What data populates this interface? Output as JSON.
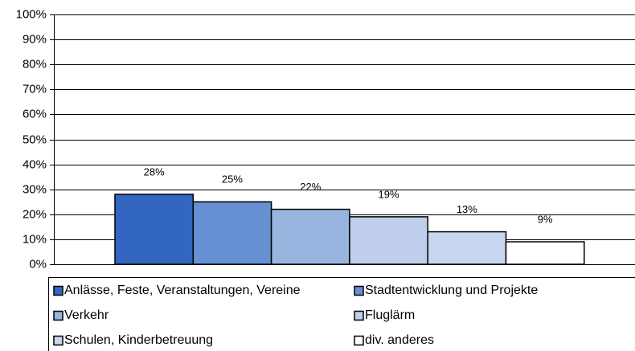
{
  "chart_data": {
    "type": "bar",
    "series": [
      {
        "name": "Anlässe, Feste, Veranstaltungen, Vereine",
        "color": "#3366c0",
        "values": [
          28
        ],
        "value_labels": [
          "28%"
        ]
      },
      {
        "name": "Stadtentwicklung und Projekte",
        "color": "#6690d2",
        "values": [
          25
        ],
        "value_labels": [
          "25%"
        ]
      },
      {
        "name": "Verkehr",
        "color": "#99b4de",
        "values": [
          22
        ],
        "value_labels": [
          "22%"
        ]
      },
      {
        "name": "Fluglärm",
        "color": "#bfcfeb",
        "values": [
          19
        ],
        "value_labels": [
          "19%"
        ]
      },
      {
        "name": "Schulen, Kinderbetreuung",
        "color": "#c9d6ef",
        "values": [
          13
        ],
        "value_labels": [
          "13%"
        ]
      },
      {
        "name": "div. anderes",
        "color": "#ffffff",
        "values": [
          9
        ],
        "value_labels": [
          "9%"
        ]
      }
    ],
    "ylim": [
      0,
      100
    ],
    "yticks": [
      {
        "value": 0,
        "label": "0%"
      },
      {
        "value": 10,
        "label": "10%"
      },
      {
        "value": 20,
        "label": "20%"
      },
      {
        "value": 30,
        "label": "30%"
      },
      {
        "value": 40,
        "label": "40%"
      },
      {
        "value": 50,
        "label": "50%"
      },
      {
        "value": 60,
        "label": "60%"
      },
      {
        "value": 70,
        "label": "70%"
      },
      {
        "value": 80,
        "label": "80%"
      },
      {
        "value": 90,
        "label": "90%"
      },
      {
        "value": 100,
        "label": "100%"
      }
    ],
    "grid": true
  }
}
